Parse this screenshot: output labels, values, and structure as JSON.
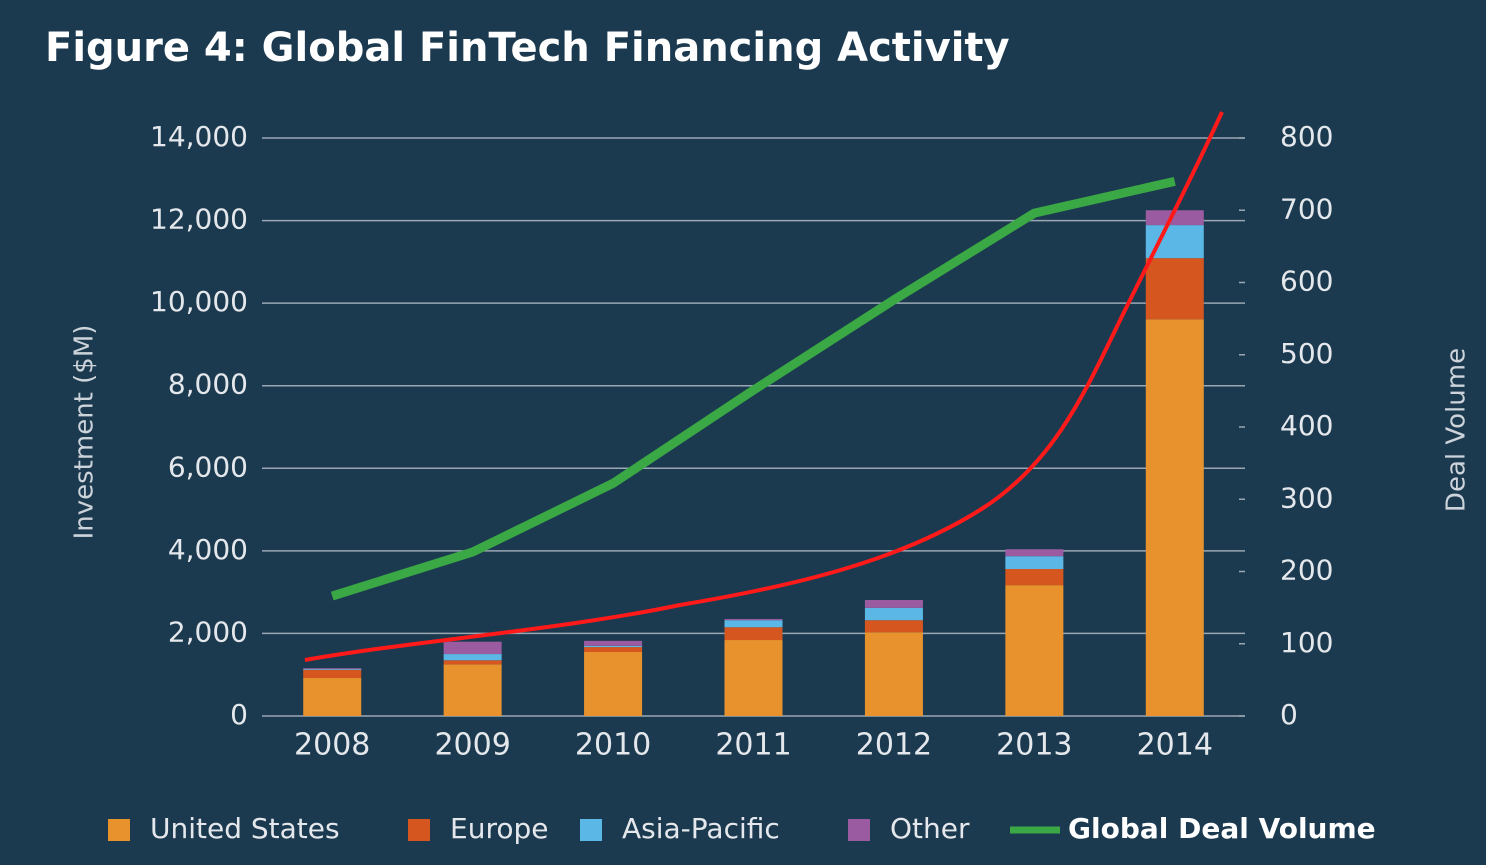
{
  "chart_data": {
    "type": "bar",
    "stacked": true,
    "title": "Figure 4: Global FinTech Financing Activity",
    "y_label": "Investment ($M)",
    "y2_label": "Deal Volume",
    "categories": [
      "2008",
      "2009",
      "2010",
      "2011",
      "2012",
      "2013",
      "2014"
    ],
    "series": [
      {
        "name": "United States",
        "color": "#e8922e",
        "values": [
          920,
          1250,
          1550,
          1840,
          2030,
          3170,
          9610
        ]
      },
      {
        "name": "Europe",
        "color": "#d5571f",
        "values": [
          200,
          100,
          120,
          310,
          290,
          390,
          1480
        ]
      },
      {
        "name": "Asia-Pacific",
        "color": "#5bb8e6",
        "values": [
          20,
          150,
          30,
          170,
          300,
          310,
          800
        ]
      },
      {
        "name": "Other",
        "color": "#9a5ba0",
        "values": [
          20,
          300,
          120,
          30,
          190,
          170,
          360
        ]
      },
      {
        "name": "Global Deal Volume",
        "color": "#3aa845",
        "type": "line",
        "axis": "y2",
        "values": [
          166,
          227,
          322,
          451,
          576,
          696,
          740
        ]
      }
    ],
    "ylim": [
      0,
      14000
    ],
    "yticks": [
      0,
      {
        "value": 2000,
        "label": "2,000"
      },
      {
        "value": 4000,
        "label": "4,000"
      },
      {
        "value": 6000,
        "label": "6,000"
      },
      {
        "value": 8000,
        "label": "8,000"
      },
      {
        "value": 10000,
        "label": "10,000"
      },
      {
        "value": 12000,
        "label": "12,000"
      },
      {
        "value": 14000,
        "label": "14,000"
      }
    ],
    "y2lim": [
      0,
      800
    ],
    "y2ticks": [
      0,
      100,
      200,
      300,
      400,
      500,
      600,
      700,
      800
    ],
    "grid": true,
    "legend": "bottom"
  }
}
